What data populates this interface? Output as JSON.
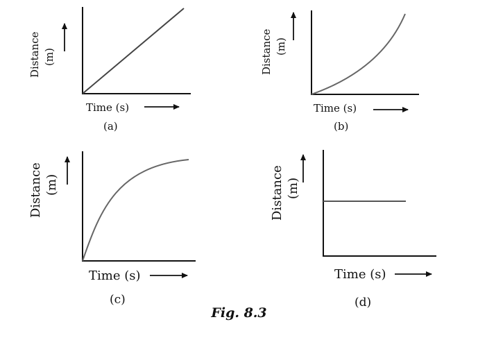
{
  "figure_caption": "Fig. 8.3",
  "colors": {
    "axis": "#111111",
    "curve": "#666666"
  },
  "graphs": [
    {
      "id": "a",
      "label": "(a)",
      "x_label": "Time (s)",
      "y_label_top": "Distance",
      "y_label_bottom": "(m)",
      "curve": "linear-increasing"
    },
    {
      "id": "b",
      "label": "(b)",
      "x_label": "Time (s)",
      "y_label_top": "Distance",
      "y_label_bottom": "(m)",
      "curve": "accelerating-increase"
    },
    {
      "id": "c",
      "label": "(c)",
      "x_label": "Time (s)",
      "y_label_top": "Distance",
      "y_label_bottom": "(m)",
      "curve": "decelerating-increase"
    },
    {
      "id": "d",
      "label": "(d)",
      "x_label": "Time (s)",
      "y_label_top": "Distance",
      "y_label_bottom": "(m)",
      "curve": "constant"
    }
  ]
}
